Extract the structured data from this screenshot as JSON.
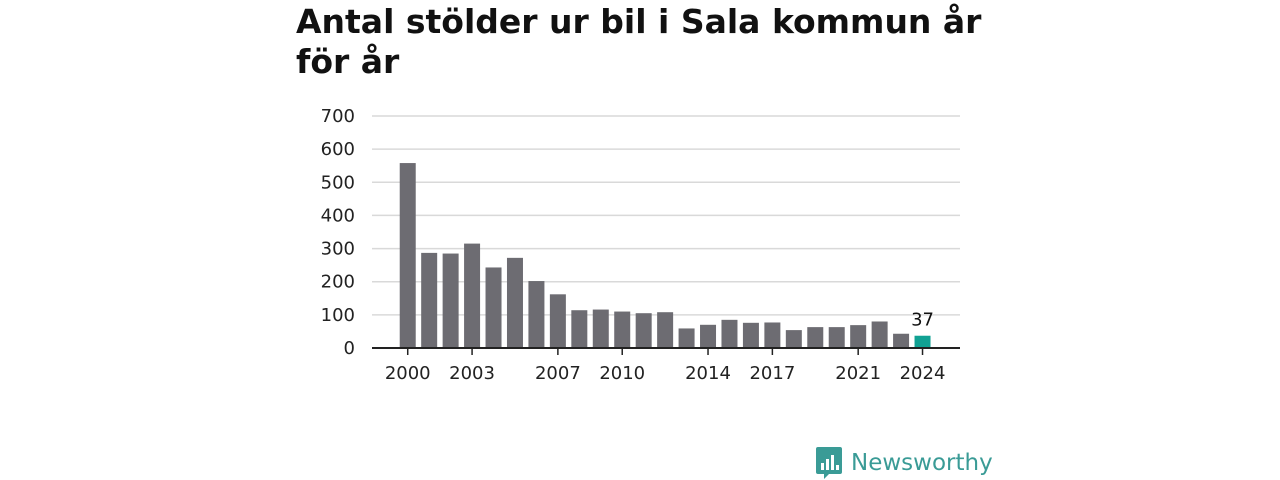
{
  "title": "Antal stölder ur bil i Sala kommun år för år",
  "brand": {
    "name": "Newsworthy",
    "color": "#3a9b96",
    "icon": "bar-chart-speech-bubble-icon"
  },
  "colors": {
    "bar": "#6d6c72",
    "highlight": "#11a193",
    "grid": "#d9d9d9",
    "axis": "#222222"
  },
  "chart_data": {
    "type": "bar",
    "title": "Antal stölder ur bil i Sala kommun år för år",
    "xlabel": "",
    "ylabel": "",
    "categories": [
      2000,
      2001,
      2002,
      2003,
      2004,
      2005,
      2006,
      2007,
      2008,
      2009,
      2010,
      2011,
      2012,
      2013,
      2014,
      2015,
      2016,
      2017,
      2018,
      2019,
      2020,
      2021,
      2022,
      2023,
      2024
    ],
    "values": [
      558,
      287,
      285,
      315,
      243,
      272,
      202,
      162,
      114,
      116,
      110,
      105,
      108,
      59,
      70,
      85,
      76,
      77,
      54,
      63,
      63,
      69,
      80,
      43,
      37
    ],
    "ylim": [
      0,
      700
    ],
    "yticks": [
      0,
      100,
      200,
      300,
      400,
      500,
      600,
      700
    ],
    "xtick_labels": [
      "2000",
      "2003",
      "2007",
      "2010",
      "2014",
      "2017",
      "2021",
      "2024"
    ],
    "highlight": {
      "category": 2024,
      "label": "37"
    },
    "grid": true,
    "legend": "none"
  }
}
